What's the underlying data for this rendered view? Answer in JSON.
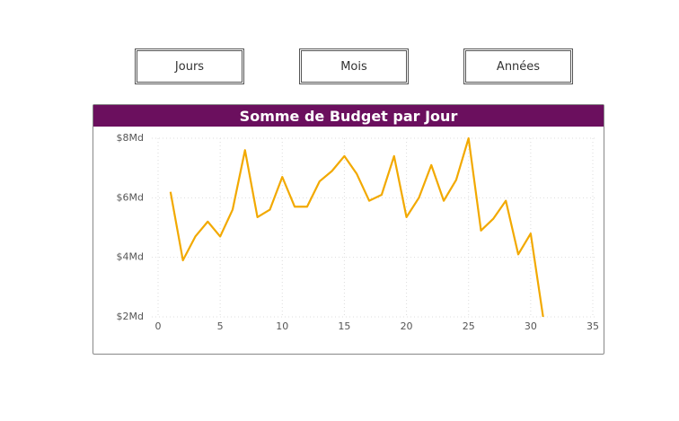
{
  "buttons": [
    "Jours",
    "Mois",
    "Années"
  ],
  "chart_data": {
    "type": "line",
    "title": "Somme de Budget par Jour",
    "x": [
      1,
      2,
      3,
      4,
      5,
      6,
      7,
      8,
      9,
      10,
      11,
      12,
      13,
      14,
      15,
      16,
      17,
      18,
      19,
      20,
      21,
      22,
      23,
      24,
      25,
      26,
      27,
      28,
      29,
      30,
      31
    ],
    "values": [
      6200000000,
      3900000000,
      4700000000,
      5200000000,
      4700000000,
      5600000000,
      7600000000,
      5350000000,
      5600000000,
      6700000000,
      5700000000,
      5700000000,
      6550000000,
      6900000000,
      7400000000,
      6800000000,
      5900000000,
      6100000000,
      7400000000,
      5350000000,
      6000000000,
      7100000000,
      5900000000,
      6600000000,
      8000000000,
      4900000000,
      5300000000,
      5900000000,
      4100000000,
      4800000000,
      2000000000
    ],
    "color": "#f2a900",
    "xlim": [
      0,
      35
    ],
    "xticks": [
      0,
      5,
      10,
      15,
      20,
      25,
      30,
      35
    ],
    "ylim": [
      2000000000,
      8000000000
    ],
    "yticks": [
      {
        "value": 2000000000,
        "label": "$2Md"
      },
      {
        "value": 4000000000,
        "label": "$4Md"
      },
      {
        "value": 6000000000,
        "label": "$6Md"
      },
      {
        "value": 8000000000,
        "label": "$8Md"
      }
    ],
    "grid": true
  }
}
